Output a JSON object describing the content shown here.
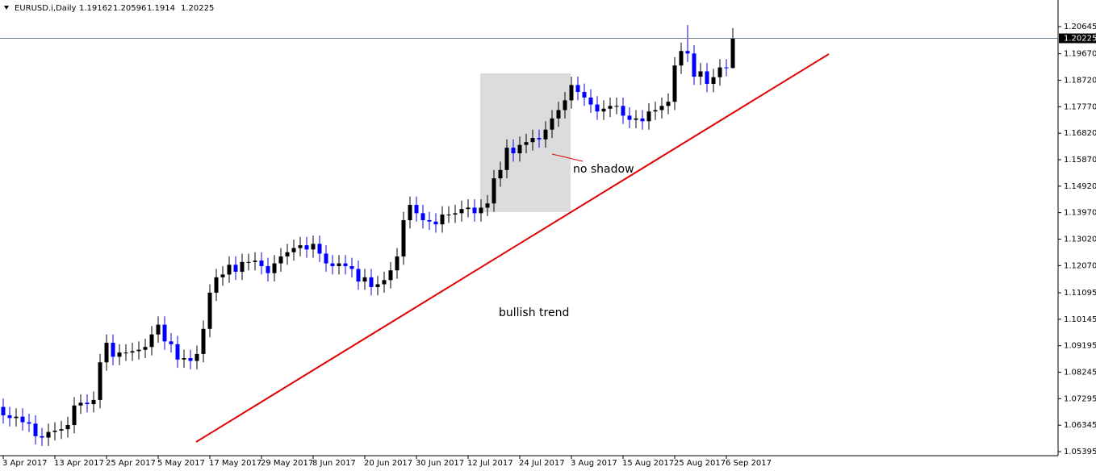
{
  "chart_data": {
    "type": "candlestick",
    "title": "EURUSD.i,Daily",
    "categories": [
      "3 Apr 2017",
      null,
      null,
      null,
      null,
      null,
      null,
      null,
      "13 Apr 2017",
      null,
      null,
      null,
      null,
      null,
      null,
      null,
      "25 Apr 2017",
      null,
      null,
      null,
      null,
      null,
      null,
      null,
      "5 May 2017",
      null,
      null,
      null,
      null,
      null,
      null,
      null,
      "17 May 2017",
      null,
      null,
      null,
      null,
      null,
      null,
      null,
      "29 May 2017",
      null,
      null,
      null,
      null,
      null,
      null,
      null,
      "8 Jun 2017",
      null,
      null,
      null,
      null,
      null,
      null,
      null,
      "20 Jun 2017",
      null,
      null,
      null,
      null,
      null,
      null,
      null,
      "30 Jun 2017",
      null,
      null,
      null,
      null,
      null,
      null,
      null,
      "12 Jul 2017",
      null,
      null,
      null,
      null,
      null,
      null,
      null,
      "24 Jul 2017",
      null,
      null,
      null,
      null,
      null,
      null,
      null,
      "3 Aug 2017",
      null,
      null,
      null,
      null,
      null,
      null,
      null,
      "15 Aug 2017",
      null,
      null,
      null,
      null,
      null,
      null,
      null,
      "25 Aug 2017",
      null,
      null,
      null,
      null,
      null,
      null,
      null,
      "6 Sep 2017",
      null
    ],
    "open": [
      1.07,
      1.067,
      1.066,
      1.0665,
      1.0645,
      1.064,
      1.0595,
      1.059,
      1.061,
      1.0615,
      1.062,
      1.0635,
      1.0705,
      1.0715,
      1.071,
      1.0725,
      1.086,
      1.093,
      1.088,
      1.0895,
      1.0895,
      1.09,
      1.0905,
      1.0915,
      1.096,
      1.0995,
      1.0935,
      1.0925,
      1.087,
      1.0875,
      1.0865,
      1.089,
      1.098,
      1.111,
      1.1165,
      1.1175,
      1.121,
      1.1185,
      1.122,
      1.122,
      1.1225,
      1.1205,
      1.118,
      1.1215,
      1.124,
      1.1255,
      1.127,
      1.128,
      1.1265,
      1.1285,
      1.125,
      1.1215,
      1.1205,
      1.1215,
      1.1205,
      1.1195,
      1.115,
      1.1165,
      1.113,
      1.114,
      1.1155,
      1.119,
      1.124,
      1.137,
      1.1425,
      1.1395,
      1.137,
      1.1365,
      1.1355,
      1.139,
      1.139,
      1.1395,
      1.141,
      1.1415,
      1.1395,
      1.1415,
      1.143,
      1.152,
      1.155,
      1.163,
      1.161,
      1.164,
      1.165,
      1.1665,
      1.166,
      1.1695,
      1.1735,
      1.1765,
      1.18,
      1.1855,
      1.183,
      1.181,
      1.1785,
      1.176,
      1.177,
      1.178,
      1.178,
      1.1745,
      1.173,
      1.1735,
      1.1725,
      1.176,
      1.1765,
      1.178,
      1.1795,
      1.1925,
      1.1977,
      1.1968,
      1.1885,
      1.1904,
      1.1859,
      1.1883,
      1.1918,
      1.19162
    ],
    "high": [
      1.073,
      1.07,
      1.0695,
      1.0695,
      1.0675,
      1.067,
      1.0625,
      1.064,
      1.0645,
      1.065,
      1.0665,
      1.0735,
      1.0745,
      1.0745,
      1.0755,
      1.089,
      1.096,
      1.096,
      1.0925,
      1.0925,
      1.093,
      1.0935,
      1.0945,
      1.099,
      1.1025,
      1.1025,
      1.0965,
      1.0955,
      1.0905,
      1.0905,
      1.092,
      1.101,
      1.114,
      1.1195,
      1.1205,
      1.124,
      1.124,
      1.125,
      1.125,
      1.1255,
      1.1255,
      1.1235,
      1.1245,
      1.127,
      1.1285,
      1.13,
      1.131,
      1.131,
      1.1315,
      1.1315,
      1.128,
      1.1245,
      1.1245,
      1.1245,
      1.1235,
      1.1225,
      1.1195,
      1.1195,
      1.117,
      1.1185,
      1.122,
      1.127,
      1.14,
      1.1455,
      1.1455,
      1.1425,
      1.14,
      1.1395,
      1.142,
      1.142,
      1.1425,
      1.144,
      1.1445,
      1.1445,
      1.1445,
      1.146,
      1.155,
      1.158,
      1.166,
      1.166,
      1.167,
      1.168,
      1.1695,
      1.1695,
      1.1725,
      1.1765,
      1.1795,
      1.183,
      1.1885,
      1.1885,
      1.186,
      1.184,
      1.1815,
      1.18,
      1.181,
      1.181,
      1.181,
      1.1775,
      1.1765,
      1.1765,
      1.179,
      1.1795,
      1.181,
      1.1825,
      1.1955,
      1.2007,
      1.207,
      1.1998,
      1.1934,
      1.1934,
      1.1913,
      1.1948,
      1.1948,
      1.20596
    ],
    "low": [
      1.064,
      1.063,
      1.063,
      1.0615,
      1.061,
      1.0565,
      1.056,
      1.056,
      1.058,
      1.0585,
      1.059,
      1.0605,
      1.0675,
      1.068,
      1.068,
      1.0695,
      1.083,
      1.085,
      1.085,
      1.0865,
      1.0865,
      1.087,
      1.0875,
      1.0885,
      1.093,
      1.0905,
      1.0895,
      1.084,
      1.084,
      1.0835,
      1.0835,
      1.086,
      1.095,
      1.108,
      1.1135,
      1.1145,
      1.1155,
      1.1155,
      1.119,
      1.119,
      1.1175,
      1.115,
      1.115,
      1.1185,
      1.121,
      1.1225,
      1.124,
      1.1235,
      1.1235,
      1.122,
      1.1185,
      1.1175,
      1.1175,
      1.1175,
      1.1165,
      1.112,
      1.112,
      1.11,
      1.11,
      1.111,
      1.1125,
      1.116,
      1.121,
      1.134,
      1.1365,
      1.134,
      1.1335,
      1.1325,
      1.1325,
      1.136,
      1.136,
      1.1365,
      1.138,
      1.1365,
      1.1365,
      1.1385,
      1.14,
      1.149,
      1.152,
      1.158,
      1.158,
      1.161,
      1.162,
      1.163,
      1.163,
      1.1665,
      1.1705,
      1.1735,
      1.177,
      1.18,
      1.178,
      1.1755,
      1.173,
      1.173,
      1.174,
      1.175,
      1.1715,
      1.17,
      1.17,
      1.1695,
      1.1695,
      1.173,
      1.1735,
      1.175,
      1.1765,
      1.1895,
      1.1938,
      1.1855,
      1.1855,
      1.1829,
      1.1829,
      1.1853,
      1.1886,
      1.1914
    ],
    "close": [
      1.067,
      1.066,
      1.0665,
      1.0645,
      1.064,
      1.0595,
      1.059,
      1.061,
      1.0615,
      1.062,
      1.0635,
      1.0705,
      1.0715,
      1.071,
      1.0725,
      1.086,
      1.093,
      1.088,
      1.0895,
      1.0895,
      1.09,
      1.0905,
      1.0915,
      1.096,
      1.0995,
      1.0935,
      1.0925,
      1.087,
      1.0875,
      1.0865,
      1.089,
      1.098,
      1.111,
      1.1165,
      1.1175,
      1.121,
      1.1185,
      1.122,
      1.122,
      1.1225,
      1.1205,
      1.118,
      1.1215,
      1.124,
      1.1255,
      1.127,
      1.128,
      1.1265,
      1.1285,
      1.125,
      1.1215,
      1.1205,
      1.1215,
      1.1205,
      1.1195,
      1.115,
      1.1165,
      1.113,
      1.114,
      1.1155,
      1.119,
      1.124,
      1.137,
      1.1425,
      1.1395,
      1.137,
      1.1365,
      1.1355,
      1.139,
      1.139,
      1.1395,
      1.141,
      1.1415,
      1.1395,
      1.1415,
      1.143,
      1.152,
      1.155,
      1.163,
      1.161,
      1.164,
      1.165,
      1.1665,
      1.166,
      1.1695,
      1.1735,
      1.1765,
      1.18,
      1.1855,
      1.183,
      1.181,
      1.1785,
      1.176,
      1.177,
      1.178,
      1.178,
      1.1745,
      1.173,
      1.1735,
      1.1725,
      1.176,
      1.1765,
      1.178,
      1.1795,
      1.1925,
      1.1977,
      1.1968,
      1.1885,
      1.1904,
      1.1859,
      1.1883,
      1.1918,
      1.1916,
      1.20225
    ],
    "up_color": "#000000",
    "down_color": "#0000ff",
    "ylim": [
      1.0525,
      1.216
    ],
    "yticks": [
      1.20645,
      {
        "value": 1.1967,
        "label": "1.19670"
      },
      {
        "value": 1.1872,
        "label": "1.18720"
      },
      {
        "value": 1.1777,
        "label": "1.17770"
      },
      {
        "value": 1.1682,
        "label": "1.16820"
      },
      {
        "value": 1.1587,
        "label": "1.15870"
      },
      {
        "value": 1.1492,
        "label": "1.14920"
      },
      {
        "value": 1.1397,
        "label": "1.13970"
      },
      {
        "value": 1.1302,
        "label": "1.13020"
      },
      {
        "value": 1.1207,
        "label": "1.12070"
      },
      1.11095,
      1.10145,
      1.09195,
      1.08245,
      1.07295,
      1.06345,
      1.05395
    ],
    "annotations": [
      "no shadow",
      "bullish trend"
    ]
  }
}
